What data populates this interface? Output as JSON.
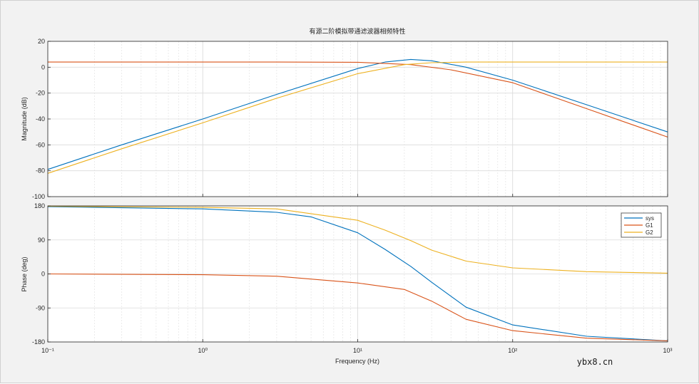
{
  "watermark": "ybx8.cn",
  "chart_data": [
    {
      "type": "line",
      "title": "有源二阶模拟带通滤波器相频特性",
      "xlabel": "",
      "ylabel": "Magnitude (dB)",
      "xscale": "log",
      "xlim": [
        0.1,
        1000
      ],
      "ylim": [
        -100,
        20
      ],
      "yticks": [
        20,
        0,
        -20,
        -40,
        -60,
        -80,
        -100
      ],
      "grid": true,
      "series": [
        {
          "name": "sys",
          "color": "#0072bd",
          "x": [
            0.1,
            0.3,
            1,
            3,
            10,
            15,
            22,
            30,
            50,
            100,
            300,
            1000
          ],
          "y": [
            -79,
            -60,
            -40,
            -21,
            -1,
            4,
            6,
            5,
            0,
            -10,
            -29,
            -50
          ]
        },
        {
          "name": "G1",
          "color": "#d95319",
          "x": [
            0.1,
            1,
            3,
            10,
            22,
            40,
            100,
            300,
            1000
          ],
          "y": [
            4,
            4,
            4,
            3.8,
            2,
            -2,
            -12,
            -32,
            -54
          ]
        },
        {
          "name": "G2",
          "color": "#edb120",
          "x": [
            0.1,
            0.3,
            1,
            3,
            10,
            20,
            30,
            50,
            100,
            1000
          ],
          "y": [
            -82,
            -63,
            -43,
            -24,
            -5,
            2,
            3.5,
            4,
            4,
            4
          ]
        }
      ]
    },
    {
      "type": "line",
      "xlabel": "Frequency  (Hz)",
      "ylabel": "Phase (deg)",
      "xscale": "log",
      "xlim": [
        0.1,
        1000
      ],
      "ylim": [
        -180,
        180
      ],
      "yticks": [
        180,
        90,
        0,
        -90,
        -180
      ],
      "xticks": [
        "10⁻¹",
        "10⁰",
        "10¹",
        "10²",
        "10³"
      ],
      "grid": true,
      "legend_position": "top-right",
      "series": [
        {
          "name": "sys",
          "color": "#0072bd",
          "x": [
            0.1,
            1,
            3,
            5,
            10,
            15,
            22,
            30,
            50,
            100,
            300,
            1000
          ],
          "y": [
            178,
            172,
            163,
            151,
            109,
            65,
            20,
            -22,
            -88,
            -135,
            -165,
            -177
          ]
        },
        {
          "name": "G1",
          "color": "#d95319",
          "x": [
            0.1,
            1,
            3,
            10,
            20,
            30,
            50,
            100,
            300,
            1000
          ],
          "y": [
            0,
            -2,
            -6,
            -24,
            -41,
            -72,
            -120,
            -150,
            -170,
            -177
          ]
        },
        {
          "name": "G2",
          "color": "#edb120",
          "x": [
            0.1,
            1,
            3,
            10,
            15,
            22,
            30,
            50,
            100,
            300,
            1000
          ],
          "y": [
            179,
            176,
            172,
            142,
            116,
            88,
            63,
            34,
            16,
            6,
            2
          ]
        }
      ]
    }
  ]
}
